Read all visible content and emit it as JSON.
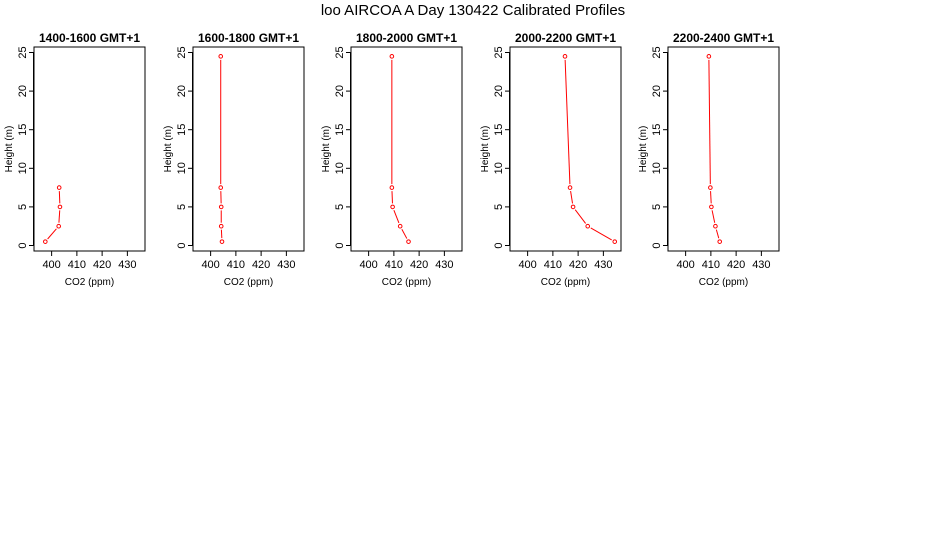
{
  "figure": {
    "title": "loo AIRCOA A  Day 130422  Calibrated Profiles"
  },
  "chart_data": [
    {
      "type": "line",
      "title": "1400-1600 GMT+1",
      "xlabel": "CO2 (ppm)",
      "ylabel": "Height (m)",
      "xlim": [
        395,
        435
      ],
      "ylim": [
        0,
        25
      ],
      "xticks": [
        400,
        410,
        420,
        430
      ],
      "yticks": [
        0,
        5,
        10,
        15,
        20,
        25
      ],
      "grid": false,
      "series": [
        {
          "color": "#ff0000",
          "x": [
            403,
            403.3,
            402.8,
            397.5
          ],
          "y": [
            7.5,
            5,
            2.5,
            0.5
          ]
        }
      ]
    },
    {
      "type": "line",
      "title": "1600-1800 GMT+1",
      "xlabel": "CO2 (ppm)",
      "ylabel": "Height (m)",
      "xlim": [
        395,
        435
      ],
      "ylim": [
        0,
        25
      ],
      "xticks": [
        400,
        410,
        420,
        430
      ],
      "yticks": [
        0,
        5,
        10,
        15,
        20,
        25
      ],
      "grid": false,
      "series": [
        {
          "color": "#ff0000",
          "x": [
            404,
            404,
            404.2,
            404.2,
            404.5
          ],
          "y": [
            24.5,
            7.5,
            5,
            2.5,
            0.5
          ]
        }
      ]
    },
    {
      "type": "line",
      "title": "1800-2000 GMT+1",
      "xlabel": "CO2 (ppm)",
      "ylabel": "Height (m)",
      "xlim": [
        395,
        435
      ],
      "ylim": [
        0,
        25
      ],
      "xticks": [
        400,
        410,
        420,
        430
      ],
      "yticks": [
        0,
        5,
        10,
        15,
        20,
        25
      ],
      "grid": false,
      "series": [
        {
          "color": "#ff0000",
          "x": [
            409.2,
            409.2,
            409.5,
            412.5,
            415.8
          ],
          "y": [
            24.5,
            7.5,
            5,
            2.5,
            0.5
          ]
        }
      ]
    },
    {
      "type": "line",
      "title": "2000-2200 GMT+1",
      "xlabel": "CO2 (ppm)",
      "ylabel": "Height (m)",
      "xlim": [
        395,
        435
      ],
      "ylim": [
        0,
        25
      ],
      "xticks": [
        400,
        410,
        420,
        430
      ],
      "yticks": [
        0,
        5,
        10,
        15,
        20,
        25
      ],
      "grid": false,
      "series": [
        {
          "color": "#ff0000",
          "x": [
            414.8,
            416.8,
            418,
            423.8,
            434.5
          ],
          "y": [
            24.5,
            7.5,
            5,
            2.5,
            0.5
          ]
        }
      ]
    },
    {
      "type": "line",
      "title": "2200-2400 GMT+1",
      "xlabel": "CO2 (ppm)",
      "ylabel": "Height (m)",
      "xlim": [
        395,
        435
      ],
      "ylim": [
        0,
        25
      ],
      "xticks": [
        400,
        410,
        420,
        430
      ],
      "yticks": [
        0,
        5,
        10,
        15,
        20,
        25
      ],
      "grid": false,
      "series": [
        {
          "color": "#ff0000",
          "x": [
            409.2,
            409.8,
            410.2,
            411.8,
            413.5
          ],
          "y": [
            24.5,
            7.5,
            5,
            2.5,
            0.5
          ]
        }
      ]
    }
  ]
}
